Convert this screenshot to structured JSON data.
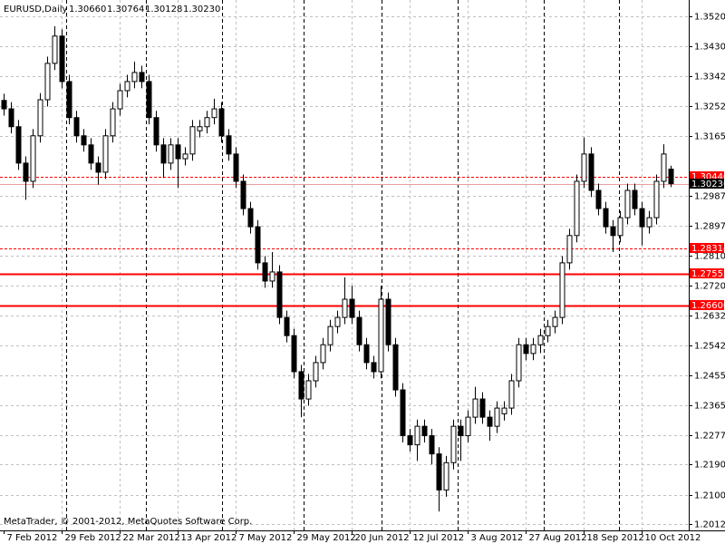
{
  "chart_data": {
    "type": "candlestick",
    "title": "EURUSD,Daily",
    "header_prices": [
      "1.30660",
      "1.30764",
      "1.30128",
      "1.30230"
    ],
    "footer": "MetaTrader, © 2001-2012, MetaQuotes Software Corp.",
    "up_color": "#ffffff",
    "down_color": "#000000",
    "grid": true,
    "xlim": [
      -0.5,
      94.5
    ],
    "ylim": [
      1.1994,
      1.3568
    ],
    "yticks": [
      {
        "value": 1.352,
        "label": "1.35200"
      },
      {
        "value": 1.343,
        "label": "1.34300"
      },
      {
        "value": 1.33425,
        "label": "1.33425"
      },
      {
        "value": 1.32525,
        "label": "1.32525"
      },
      {
        "value": 1.3165,
        "label": "1.31650"
      },
      {
        "value": 1.29875,
        "label": "1.29875"
      },
      {
        "value": 1.28975,
        "label": "1.28975"
      },
      {
        "value": 1.281,
        "label": "1.28100"
      },
      {
        "value": 1.272,
        "label": "1.27200"
      },
      {
        "value": 1.26325,
        "label": "1.26325"
      },
      {
        "value": 1.25425,
        "label": "1.25425"
      },
      {
        "value": 1.2455,
        "label": "1.24550"
      },
      {
        "value": 1.2365,
        "label": "1.23650"
      },
      {
        "value": 1.22775,
        "label": "1.22775"
      },
      {
        "value": 1.219,
        "label": "1.21900"
      },
      {
        "value": 1.21,
        "label": "1.21000"
      },
      {
        "value": 1.20125,
        "label": "1.20125"
      }
    ],
    "xticks": [
      {
        "value": 0,
        "label": "7 Feb 2012"
      },
      {
        "value": 8,
        "label": "29 Feb 2012"
      },
      {
        "value": 16,
        "label": "22 Mar 2012"
      },
      {
        "value": 24,
        "label": "13 Apr 2012"
      },
      {
        "value": 32,
        "label": "7 May 2012"
      },
      {
        "value": 40,
        "label": "29 May 2012"
      },
      {
        "value": 48,
        "label": "20 Jun 2012"
      },
      {
        "value": 56,
        "label": "12 Jul 2012"
      },
      {
        "value": 64,
        "label": "3 Aug 2012"
      },
      {
        "value": 72,
        "label": "27 Aug 2012"
      },
      {
        "value": 80,
        "label": "18 Sep 2012"
      },
      {
        "value": 88,
        "label": "10 Oct 2012"
      }
    ],
    "period_separators": [
      8.6,
      19.6,
      30.1,
      41.4,
      52.1,
      62.6,
      74.5,
      84.9
    ],
    "levels": [
      {
        "value": 1.3044,
        "label": "1.30440",
        "color": "#ff0000",
        "style": "dashed",
        "label_color": "#ff0000"
      },
      {
        "value": 1.3023,
        "label": "1.30230",
        "color": "#e8a0a0",
        "style": "solid",
        "label_color": "#000000"
      },
      {
        "value": 1.28314,
        "label": "1.28314",
        "color": "#ff0000",
        "style": "dashed",
        "label_color": "#ff0000"
      },
      {
        "value": 1.27552,
        "label": "1.27552",
        "color": "#ff0000",
        "style": "bold",
        "label_color": "#ff0000"
      },
      {
        "value": 1.266,
        "label": "1.26600",
        "color": "#ff0000",
        "style": "bold",
        "label_color": "#ff0000"
      }
    ],
    "open": [
      1.327,
      1.3245,
      1.3192,
      1.3084,
      1.303,
      1.3165,
      1.3272,
      1.338,
      1.3461,
      1.3326,
      1.3219,
      1.3165,
      1.3138,
      1.3084,
      1.3057,
      1.3165,
      1.3245,
      1.3299,
      1.3326,
      1.3353,
      1.3326,
      1.3219,
      1.3138,
      1.3084,
      1.3138,
      1.3097,
      1.3111,
      1.318,
      1.3192,
      1.3219,
      1.3245,
      1.3165,
      1.3111,
      1.303,
      1.2949,
      1.2895,
      1.2788,
      1.2734,
      1.2761,
      1.2626,
      1.2572,
      1.2465,
      1.2384,
      1.2438,
      1.2492,
      1.2545,
      1.2599,
      1.2626,
      1.268,
      1.2626,
      1.2545,
      1.2492,
      1.2465,
      1.268,
      1.2545,
      1.2411,
      1.2275,
      1.2248,
      1.2303,
      1.2275,
      1.2221,
      1.2114,
      1.2195,
      1.2303,
      1.2275,
      1.233,
      1.2384,
      1.233,
      1.2303,
      1.234,
      1.2357,
      1.2438,
      1.2545,
      1.2519,
      1.2545,
      1.2572,
      1.2599,
      1.2626,
      1.2788,
      1.2869,
      1.303,
      1.3111,
      1.3003,
      1.2949,
      1.2895,
      1.2869,
      1.2922,
      1.3003,
      1.2949,
      1.2895,
      1.2922,
      1.303,
      1.3066
    ],
    "high": [
      1.329,
      1.3265,
      1.3212,
      1.3104,
      1.3185,
      1.3292,
      1.34,
      1.349,
      1.3481,
      1.3346,
      1.3239,
      1.3185,
      1.3158,
      1.3104,
      1.3185,
      1.3265,
      1.3319,
      1.3346,
      1.3385,
      1.3373,
      1.3346,
      1.3239,
      1.3158,
      1.3158,
      1.3158,
      1.3131,
      1.3212,
      1.3212,
      1.3239,
      1.3275,
      1.3265,
      1.3185,
      1.3131,
      1.305,
      1.2969,
      1.2915,
      1.2808,
      1.282,
      1.2781,
      1.2646,
      1.2592,
      1.2485,
      1.2458,
      1.2512,
      1.2565,
      1.2619,
      1.2646,
      1.2745,
      1.272,
      1.2646,
      1.2565,
      1.2512,
      1.272,
      1.27,
      1.2565,
      1.2431,
      1.2295,
      1.2323,
      1.2323,
      1.2295,
      1.2241,
      1.2215,
      1.2323,
      1.2323,
      1.235,
      1.242,
      1.2404,
      1.235,
      1.2377,
      1.2377,
      1.2458,
      1.2565,
      1.2565,
      1.2565,
      1.2592,
      1.2619,
      1.2646,
      1.2808,
      1.2889,
      1.305,
      1.316,
      1.3131,
      1.3023,
      1.2969,
      1.2915,
      1.2942,
      1.3023,
      1.3023,
      1.2969,
      1.2942,
      1.305,
      1.314,
      1.30764
    ],
    "low": [
      1.3225,
      1.3172,
      1.3064,
      1.2975,
      1.301,
      1.3145,
      1.3252,
      1.336,
      1.3306,
      1.3199,
      1.3145,
      1.3118,
      1.3064,
      1.302,
      1.3037,
      1.3145,
      1.3225,
      1.3279,
      1.3306,
      1.3306,
      1.3199,
      1.3118,
      1.304,
      1.3064,
      1.301,
      1.3077,
      1.3091,
      1.316,
      1.3172,
      1.3199,
      1.3145,
      1.3091,
      1.301,
      1.2929,
      1.2875,
      1.2768,
      1.2714,
      1.2714,
      1.2606,
      1.2552,
      1.2445,
      1.233,
      1.2364,
      1.2418,
      1.2472,
      1.2525,
      1.2579,
      1.2606,
      1.2606,
      1.2525,
      1.2472,
      1.2445,
      1.2445,
      1.2525,
      1.2391,
      1.2255,
      1.2228,
      1.22,
      1.2255,
      1.219,
      1.205,
      1.2094,
      1.2175,
      1.22,
      1.2255,
      1.231,
      1.231,
      1.226,
      1.2283,
      1.232,
      1.2337,
      1.2418,
      1.2499,
      1.2499,
      1.252,
      1.2552,
      1.2579,
      1.2606,
      1.2768,
      1.2849,
      1.301,
      1.2983,
      1.2929,
      1.2875,
      1.282,
      1.2849,
      1.2902,
      1.2929,
      1.284,
      1.2875,
      1.2902,
      1.301,
      1.30128
    ],
    "close": [
      1.3245,
      1.3192,
      1.3084,
      1.303,
      1.3165,
      1.3272,
      1.338,
      1.3461,
      1.3326,
      1.3219,
      1.3165,
      1.3138,
      1.3084,
      1.3057,
      1.3165,
      1.3245,
      1.3299,
      1.3326,
      1.3353,
      1.3326,
      1.3219,
      1.3138,
      1.3084,
      1.3138,
      1.3097,
      1.3111,
      1.3192,
      1.3192,
      1.3219,
      1.3245,
      1.3165,
      1.3111,
      1.303,
      1.2949,
      1.2895,
      1.2788,
      1.2734,
      1.2761,
      1.2626,
      1.2572,
      1.2465,
      1.2384,
      1.2438,
      1.2492,
      1.2545,
      1.2599,
      1.2626,
      1.268,
      1.2626,
      1.2545,
      1.2492,
      1.2465,
      1.268,
      1.2545,
      1.2411,
      1.2275,
      1.2248,
      1.2303,
      1.2275,
      1.2221,
      1.2114,
      1.2195,
      1.2303,
      1.2275,
      1.233,
      1.2384,
      1.233,
      1.2303,
      1.2357,
      1.2357,
      1.2438,
      1.2545,
      1.2519,
      1.2545,
      1.2572,
      1.2599,
      1.2626,
      1.2788,
      1.2869,
      1.303,
      1.3111,
      1.3003,
      1.2949,
      1.2895,
      1.2869,
      1.2922,
      1.3003,
      1.2949,
      1.2895,
      1.2922,
      1.303,
      1.3111,
      1.3023
    ]
  }
}
